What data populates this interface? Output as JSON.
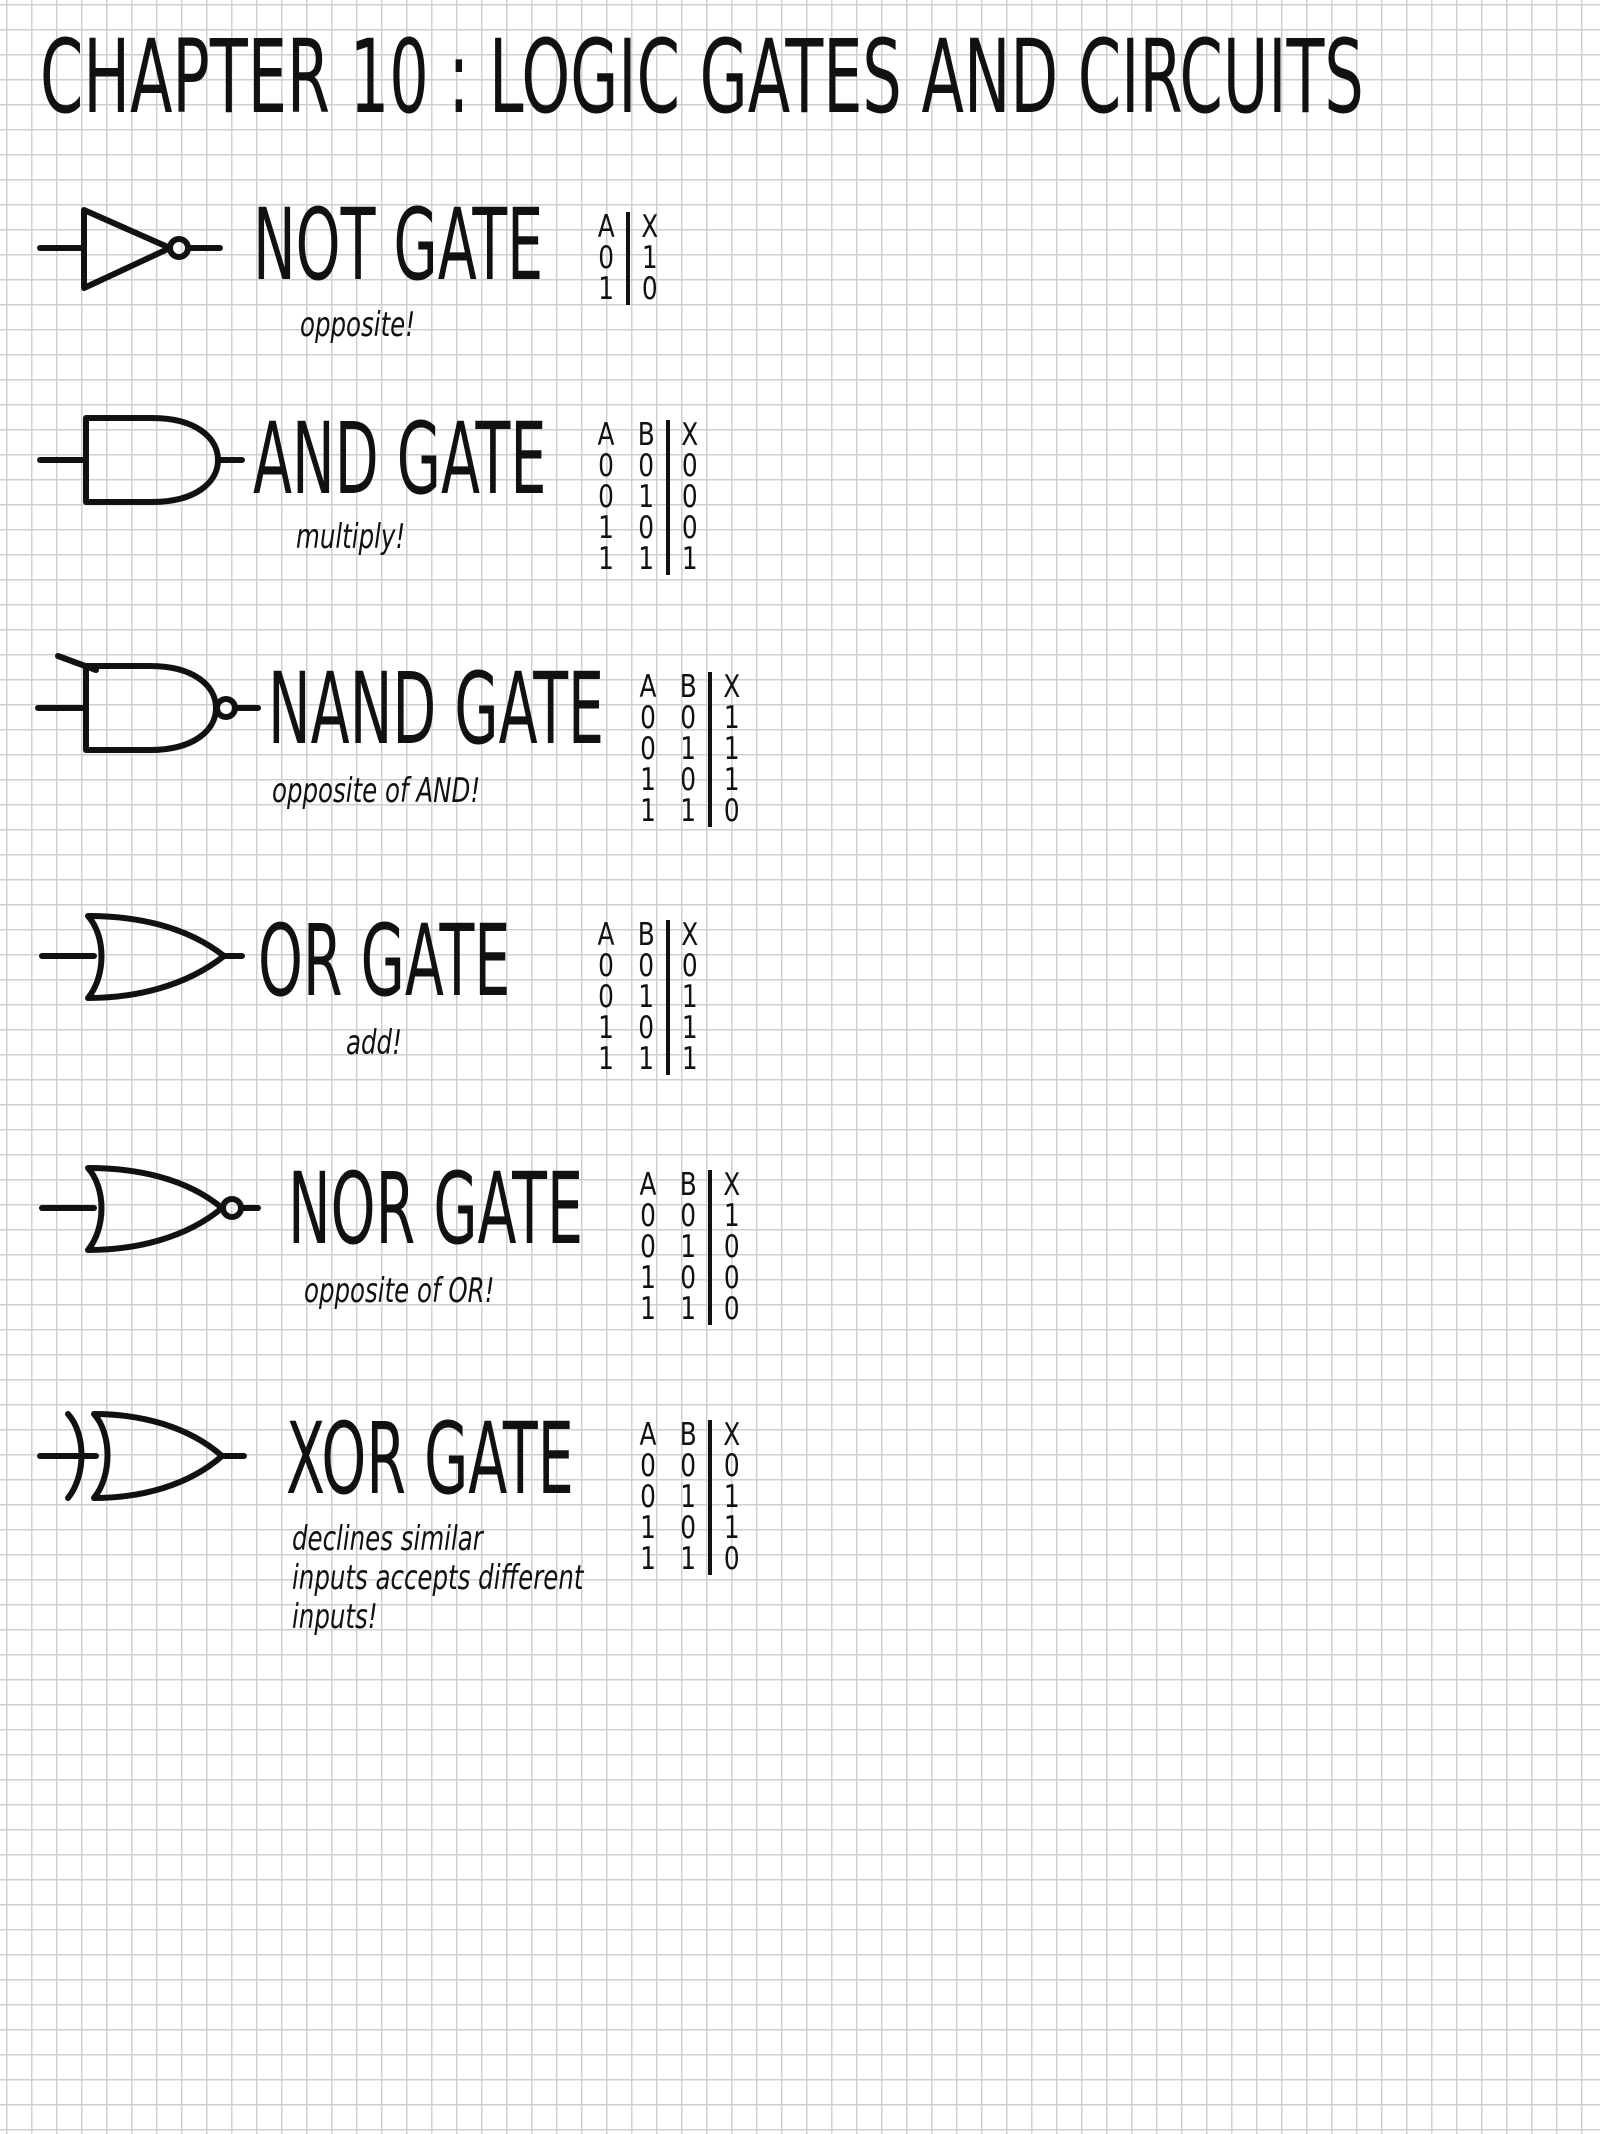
{
  "title": "CHAPTER 10 : LOGIC GATES AND CIRCUITS",
  "gates": [
    {
      "name": "NOT GATE",
      "description": [
        "opposite!"
      ],
      "table": {
        "headers": [
          "A",
          "X"
        ],
        "rows": [
          [
            "0",
            "1"
          ],
          [
            "1",
            "0"
          ]
        ]
      }
    },
    {
      "name": "AND GATE",
      "description": [
        "multiply!"
      ],
      "table": {
        "headers": [
          "A",
          "B",
          "X"
        ],
        "rows": [
          [
            "0",
            "0",
            "0"
          ],
          [
            "0",
            "1",
            "0"
          ],
          [
            "1",
            "0",
            "0"
          ],
          [
            "1",
            "1",
            "1"
          ]
        ]
      }
    },
    {
      "name": "NAND GATE",
      "description": [
        "opposite of AND!"
      ],
      "table": {
        "headers": [
          "A",
          "B",
          "X"
        ],
        "rows": [
          [
            "0",
            "0",
            "1"
          ],
          [
            "0",
            "1",
            "1"
          ],
          [
            "1",
            "0",
            "1"
          ],
          [
            "1",
            "1",
            "0"
          ]
        ]
      }
    },
    {
      "name": "OR GATE",
      "description": [
        "add!"
      ],
      "table": {
        "headers": [
          "A",
          "B",
          "X"
        ],
        "rows": [
          [
            "0",
            "0",
            "0"
          ],
          [
            "0",
            "1",
            "1"
          ],
          [
            "1",
            "0",
            "1"
          ],
          [
            "1",
            "1",
            "1"
          ]
        ]
      }
    },
    {
      "name": "NOR GATE",
      "description": [
        "opposite of OR!"
      ],
      "table": {
        "headers": [
          "A",
          "B",
          "X"
        ],
        "rows": [
          [
            "0",
            "0",
            "1"
          ],
          [
            "0",
            "1",
            "0"
          ],
          [
            "1",
            "0",
            "0"
          ],
          [
            "1",
            "1",
            "0"
          ]
        ]
      }
    },
    {
      "name": "XOR GATE",
      "description": [
        "declines similar",
        "inputs accepts different",
        "inputs!"
      ],
      "table": {
        "headers": [
          "A",
          "B",
          "X"
        ],
        "rows": [
          [
            "0",
            "0",
            "0"
          ],
          [
            "0",
            "1",
            "1"
          ],
          [
            "1",
            "0",
            "1"
          ],
          [
            "1",
            "1",
            "0"
          ]
        ]
      }
    }
  ],
  "icons": {
    "not": "not-gate-icon",
    "and": "and-gate-icon",
    "nand": "nand-gate-icon",
    "or": "or-gate-icon",
    "nor": "nor-gate-icon",
    "xor": "xor-gate-icon"
  },
  "colors": {
    "ink": "#111111",
    "grid": "#cfcfcf",
    "paper": "#ffffff"
  }
}
